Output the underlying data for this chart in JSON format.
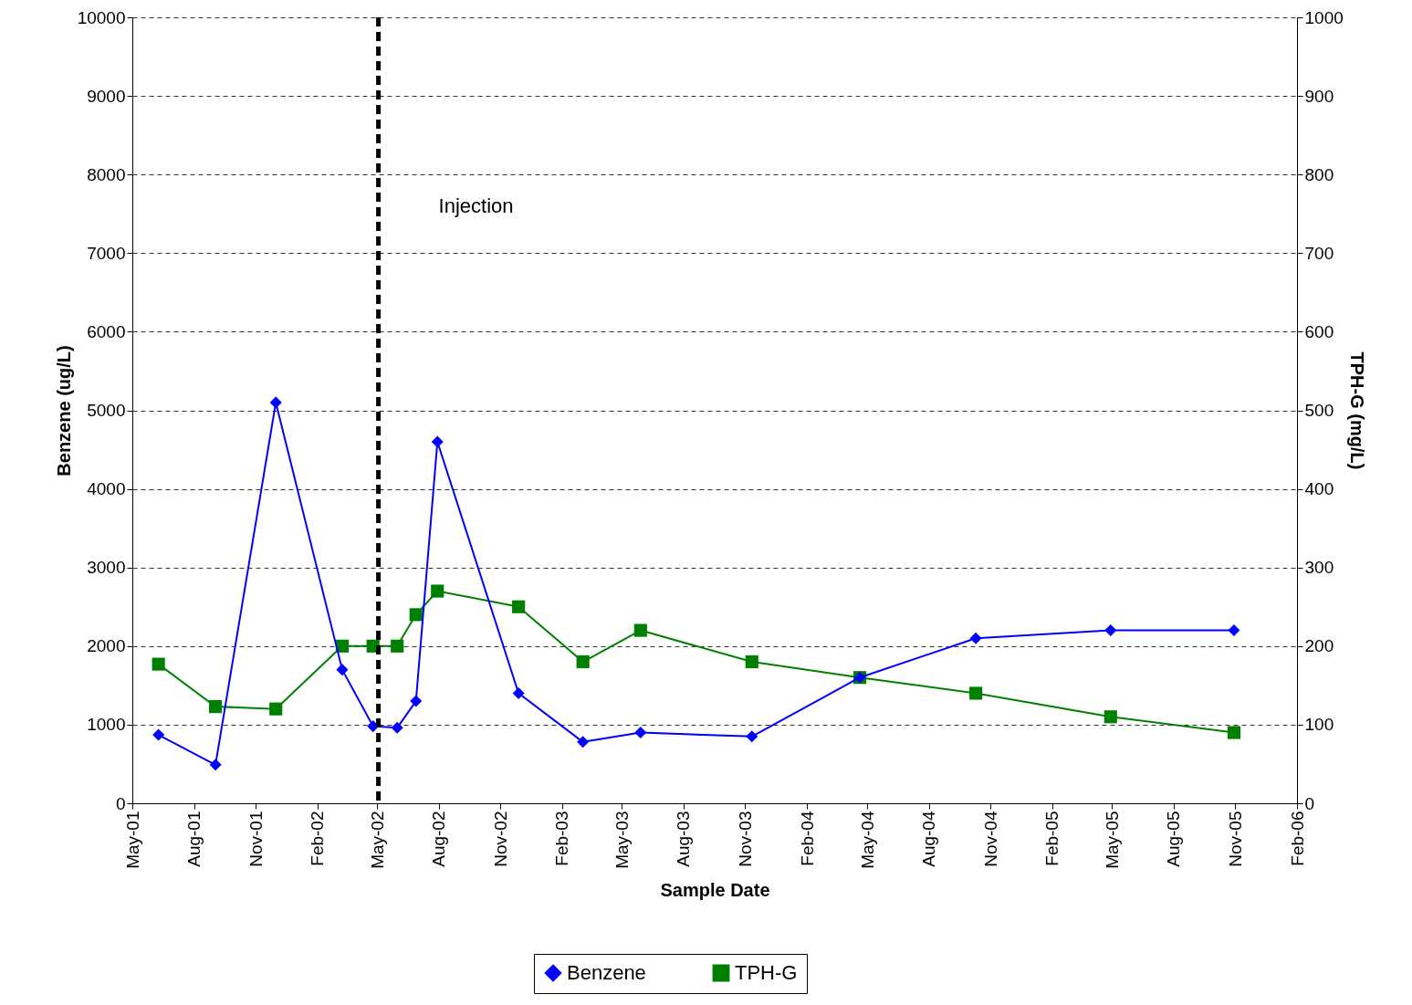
{
  "chart_data": {
    "type": "line",
    "xlabel": "Sample Date",
    "ylabel": "Benzene (ug/L)",
    "y2label": "TPH-G (mg/L)",
    "x": [
      "2001-06-09",
      "2001-09-02",
      "2001-12-01",
      "2002-03-10",
      "2002-04-25",
      "2002-05-31",
      "2002-06-28",
      "2002-07-30",
      "2002-11-28",
      "2003-03-04",
      "2003-05-29",
      "2003-11-11",
      "2004-04-20",
      "2004-10-10",
      "2005-04-29",
      "2005-10-30"
    ],
    "series": [
      {
        "name": "Benzene",
        "color": "#0000ff",
        "marker": "diamond",
        "values": [
          870,
          490,
          5100,
          1700,
          980,
          960,
          1300,
          4600,
          1400,
          780,
          900,
          850,
          1600,
          2100,
          2200,
          2200
        ]
      },
      {
        "name": "TPH-G",
        "color": "#008000",
        "marker": "square",
        "axis": "y2",
        "values": [
          177,
          123,
          120,
          200,
          200,
          200,
          240,
          270,
          250,
          180,
          220,
          180,
          160,
          140,
          110,
          90
        ]
      }
    ],
    "xlim": [
      "2001-05-01",
      "2006-02-01"
    ],
    "xticks": [
      {
        "value": "2001-05-01",
        "label": "May-01"
      },
      {
        "value": "2001-08-01",
        "label": "Aug-01"
      },
      {
        "value": "2001-11-01",
        "label": "Nov-01"
      },
      {
        "value": "2002-02-01",
        "label": "Feb-02"
      },
      {
        "value": "2002-05-01",
        "label": "May-02"
      },
      {
        "value": "2002-08-01",
        "label": "Aug-02"
      },
      {
        "value": "2002-11-01",
        "label": "Nov-02"
      },
      {
        "value": "2003-02-01",
        "label": "Feb-03"
      },
      {
        "value": "2003-05-01",
        "label": "May-03"
      },
      {
        "value": "2003-08-01",
        "label": "Aug-03"
      },
      {
        "value": "2003-11-01",
        "label": "Nov-03"
      },
      {
        "value": "2004-02-01",
        "label": "Feb-04"
      },
      {
        "value": "2004-05-01",
        "label": "May-04"
      },
      {
        "value": "2004-08-01",
        "label": "Aug-04"
      },
      {
        "value": "2004-11-01",
        "label": "Nov-04"
      },
      {
        "value": "2005-02-01",
        "label": "Feb-05"
      },
      {
        "value": "2005-05-01",
        "label": "May-05"
      },
      {
        "value": "2005-08-01",
        "label": "Aug-05"
      },
      {
        "value": "2005-11-01",
        "label": "Nov-05"
      },
      {
        "value": "2006-02-01",
        "label": "Feb-06"
      }
    ],
    "ylim": [
      0,
      10000
    ],
    "yticks": [
      0,
      1000,
      2000,
      3000,
      4000,
      5000,
      6000,
      7000,
      8000,
      9000,
      10000
    ],
    "y2lim": [
      0,
      1000
    ],
    "y2ticks": [
      0,
      100,
      200,
      300,
      400,
      500,
      600,
      700,
      800,
      900,
      1000
    ],
    "grid": "y",
    "legend": "bottom",
    "ref_lines": [
      {
        "axis": "x",
        "value": "2002-05-03",
        "label": "Injection",
        "color": "#000000",
        "line_style": "dashed"
      }
    ]
  }
}
